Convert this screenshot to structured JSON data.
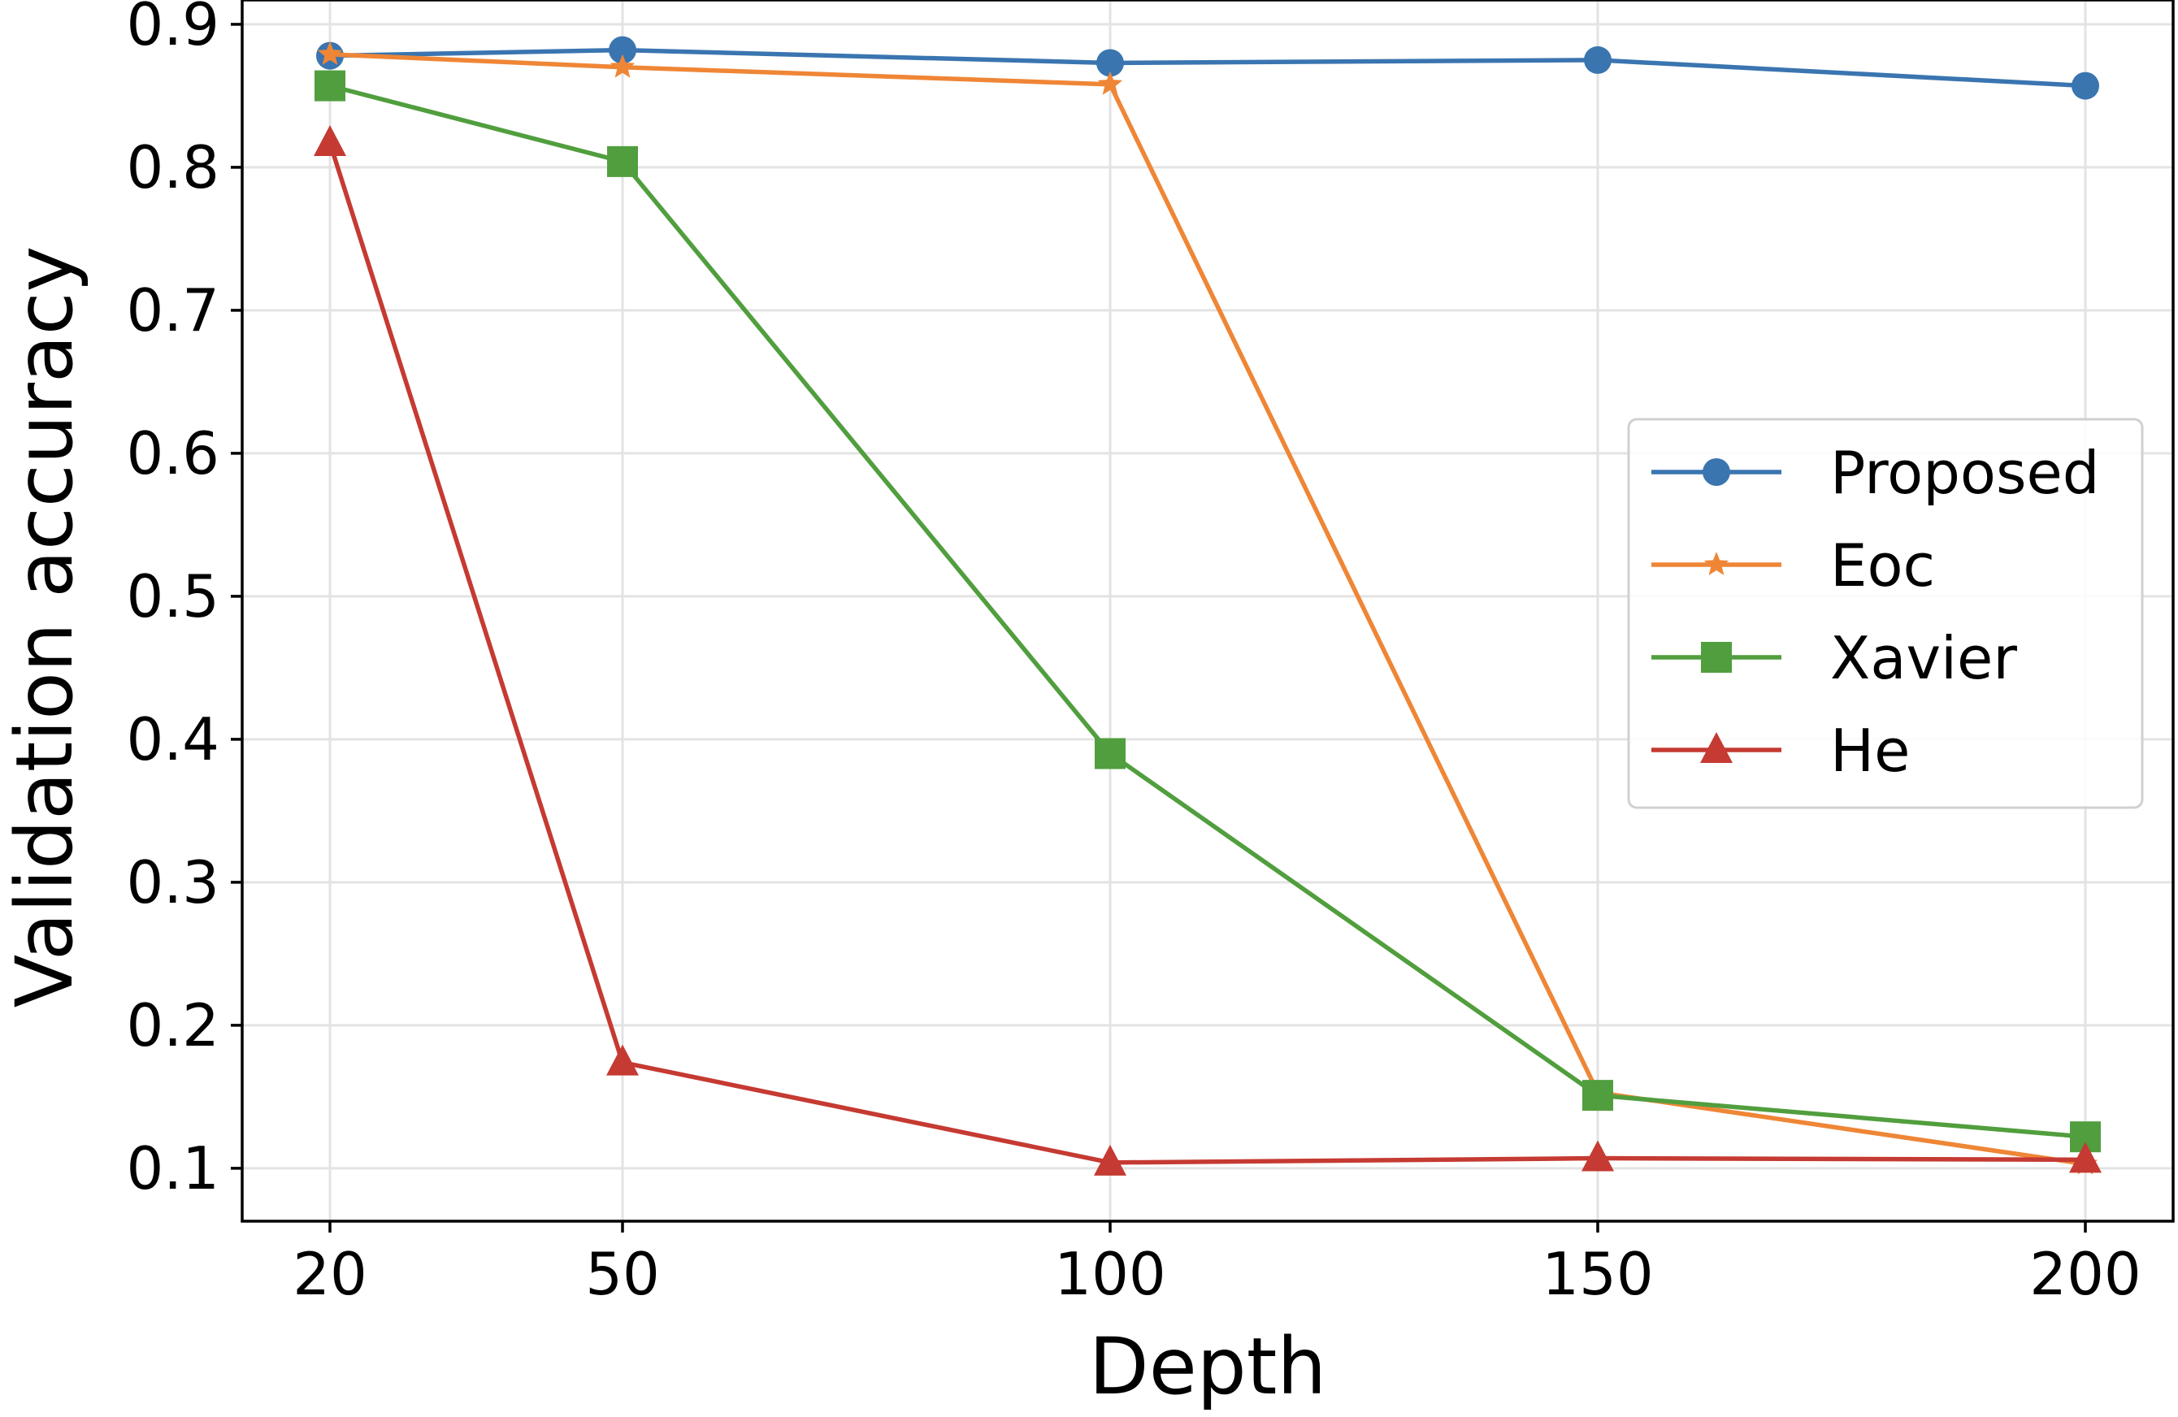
{
  "chart_data": {
    "type": "line",
    "title": "",
    "xlabel": "Depth",
    "ylabel": "Validation accuracy",
    "x": [
      20,
      50,
      100,
      150,
      200
    ],
    "x_tick_labels": [
      "20",
      "50",
      "100",
      "150",
      "200"
    ],
    "y_tick_values": [
      0.1,
      0.2,
      0.3,
      0.4,
      0.5,
      0.6,
      0.7,
      0.8,
      0.9
    ],
    "y_tick_labels": [
      "0.1",
      "0.2",
      "0.3",
      "0.4",
      "0.5",
      "0.6",
      "0.7",
      "0.8",
      "0.9"
    ],
    "xlim": [
      11,
      209
    ],
    "ylim": [
      0.063,
      0.917
    ],
    "grid": true,
    "legend_position": "center-right",
    "series": [
      {
        "name": "Proposed",
        "color": "#3a75b0",
        "marker": "circle",
        "values": [
          0.878,
          0.882,
          0.873,
          0.875,
          0.857
        ]
      },
      {
        "name": "Eoc",
        "color": "#ef8636",
        "marker": "star",
        "values": [
          0.879,
          0.87,
          0.858,
          0.153,
          0.103
        ]
      },
      {
        "name": "Xavier",
        "color": "#519e3e",
        "marker": "square",
        "values": [
          0.857,
          0.804,
          0.39,
          0.151,
          0.122
        ]
      },
      {
        "name": "He",
        "color": "#c53a32",
        "marker": "triangle",
        "values": [
          0.817,
          0.174,
          0.104,
          0.107,
          0.106
        ]
      }
    ]
  }
}
